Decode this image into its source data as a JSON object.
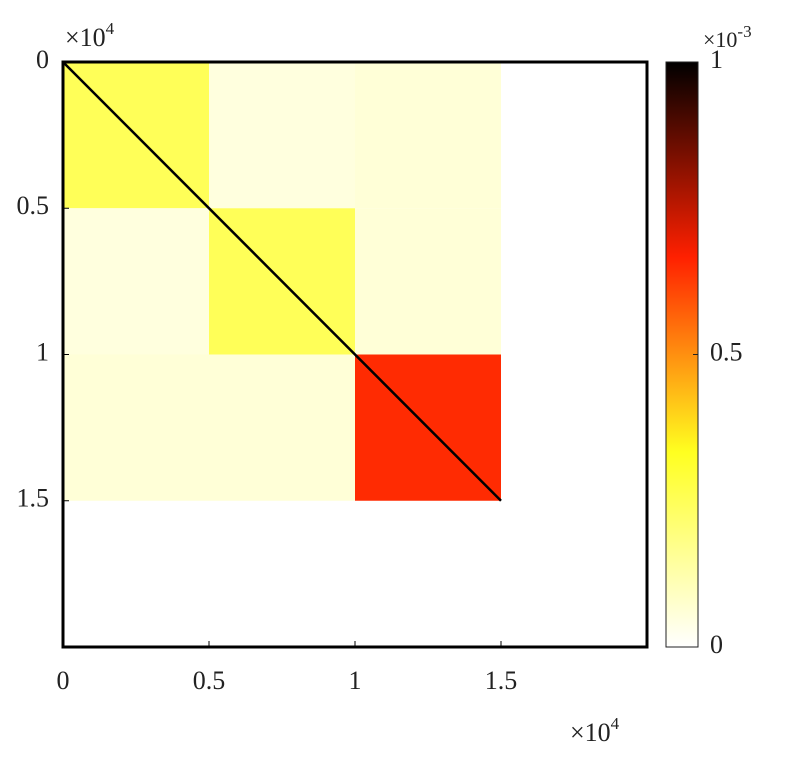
{
  "chart_data": {
    "type": "heatmap",
    "bins": [
      0,
      0.5,
      1,
      1.5
    ],
    "values": [
      [
        0.25,
        0.05,
        0.06
      ],
      [
        0.05,
        0.25,
        0.06
      ],
      [
        0.06,
        0.06,
        0.65
      ]
    ],
    "diagonal_value": 1,
    "xlim": [
      0,
      2
    ],
    "ylim": [
      0,
      2
    ],
    "xticks": [
      0,
      0.5,
      1,
      1.5
    ],
    "yticks": [
      0,
      0.5,
      1,
      1.5
    ],
    "x_multiplier": {
      "base": "×10",
      "exponent": "4"
    },
    "y_multiplier": {
      "base": "×10",
      "exponent": "4"
    },
    "colorbar": {
      "lim": [
        0,
        1
      ],
      "ticks": [
        0,
        0.5,
        1
      ],
      "multiplier": {
        "base": "×10",
        "exponent": "-3"
      },
      "colormap": [
        "#ffffff",
        "#ffff20",
        "#ff2000",
        "#000000"
      ]
    }
  }
}
